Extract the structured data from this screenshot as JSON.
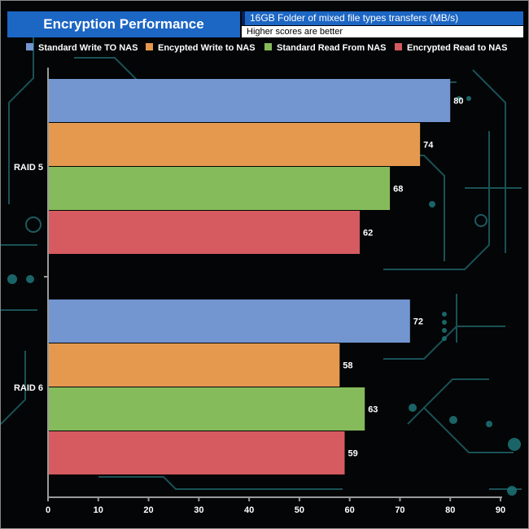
{
  "title": "Encryption Performance",
  "subtitle": "16GB Folder of mixed file types transfers (MB/s)",
  "note": "Higher scores are better",
  "colors": {
    "standard_write": "#7396d1",
    "encrypted_write": "#e5994f",
    "standard_read": "#86bb5b",
    "encrypted_read": "#d55b60",
    "title_bg": "#1c66c4"
  },
  "chart_data": {
    "type": "bar",
    "orientation": "horizontal",
    "title": "Encryption Performance",
    "subtitle": "16GB Folder of mixed file types transfers (MB/s)",
    "categories": [
      "RAID 5",
      "RAID 6"
    ],
    "series": [
      {
        "name": "Standard Write TO NAS",
        "values": [
          80,
          72
        ],
        "color": "#7396d1"
      },
      {
        "name": "Encypted Write to NAS",
        "values": [
          74,
          58
        ],
        "color": "#e5994f"
      },
      {
        "name": "Standard Read From NAS",
        "values": [
          68,
          63
        ],
        "color": "#86bb5b"
      },
      {
        "name": "Encrypted Read to NAS",
        "values": [
          62,
          59
        ],
        "color": "#d55b60"
      }
    ],
    "xlim": [
      0,
      90
    ],
    "xticks": [
      0,
      10,
      20,
      30,
      40,
      50,
      60,
      70,
      80,
      90
    ],
    "xlabel": "",
    "ylabel": "",
    "legend": "top"
  }
}
